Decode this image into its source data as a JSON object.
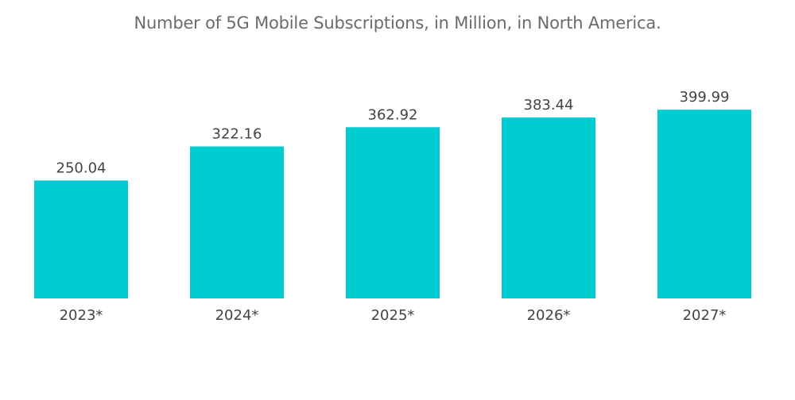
{
  "chart_data": {
    "type": "bar",
    "title": "Number of 5G Mobile Subscriptions, in Million, in North America.",
    "categories": [
      "2023*",
      "2024*",
      "2025*",
      "2026*",
      "2027*"
    ],
    "values": [
      250.04,
      322.16,
      362.92,
      383.44,
      399.99
    ],
    "value_labels": [
      "250.04",
      "322.16",
      "362.92",
      "383.44",
      "399.99"
    ],
    "xlabel": "",
    "ylabel": "",
    "ylim": [
      0,
      410
    ],
    "grid": false,
    "legend": "none",
    "bar_color": "#00CDD2"
  }
}
